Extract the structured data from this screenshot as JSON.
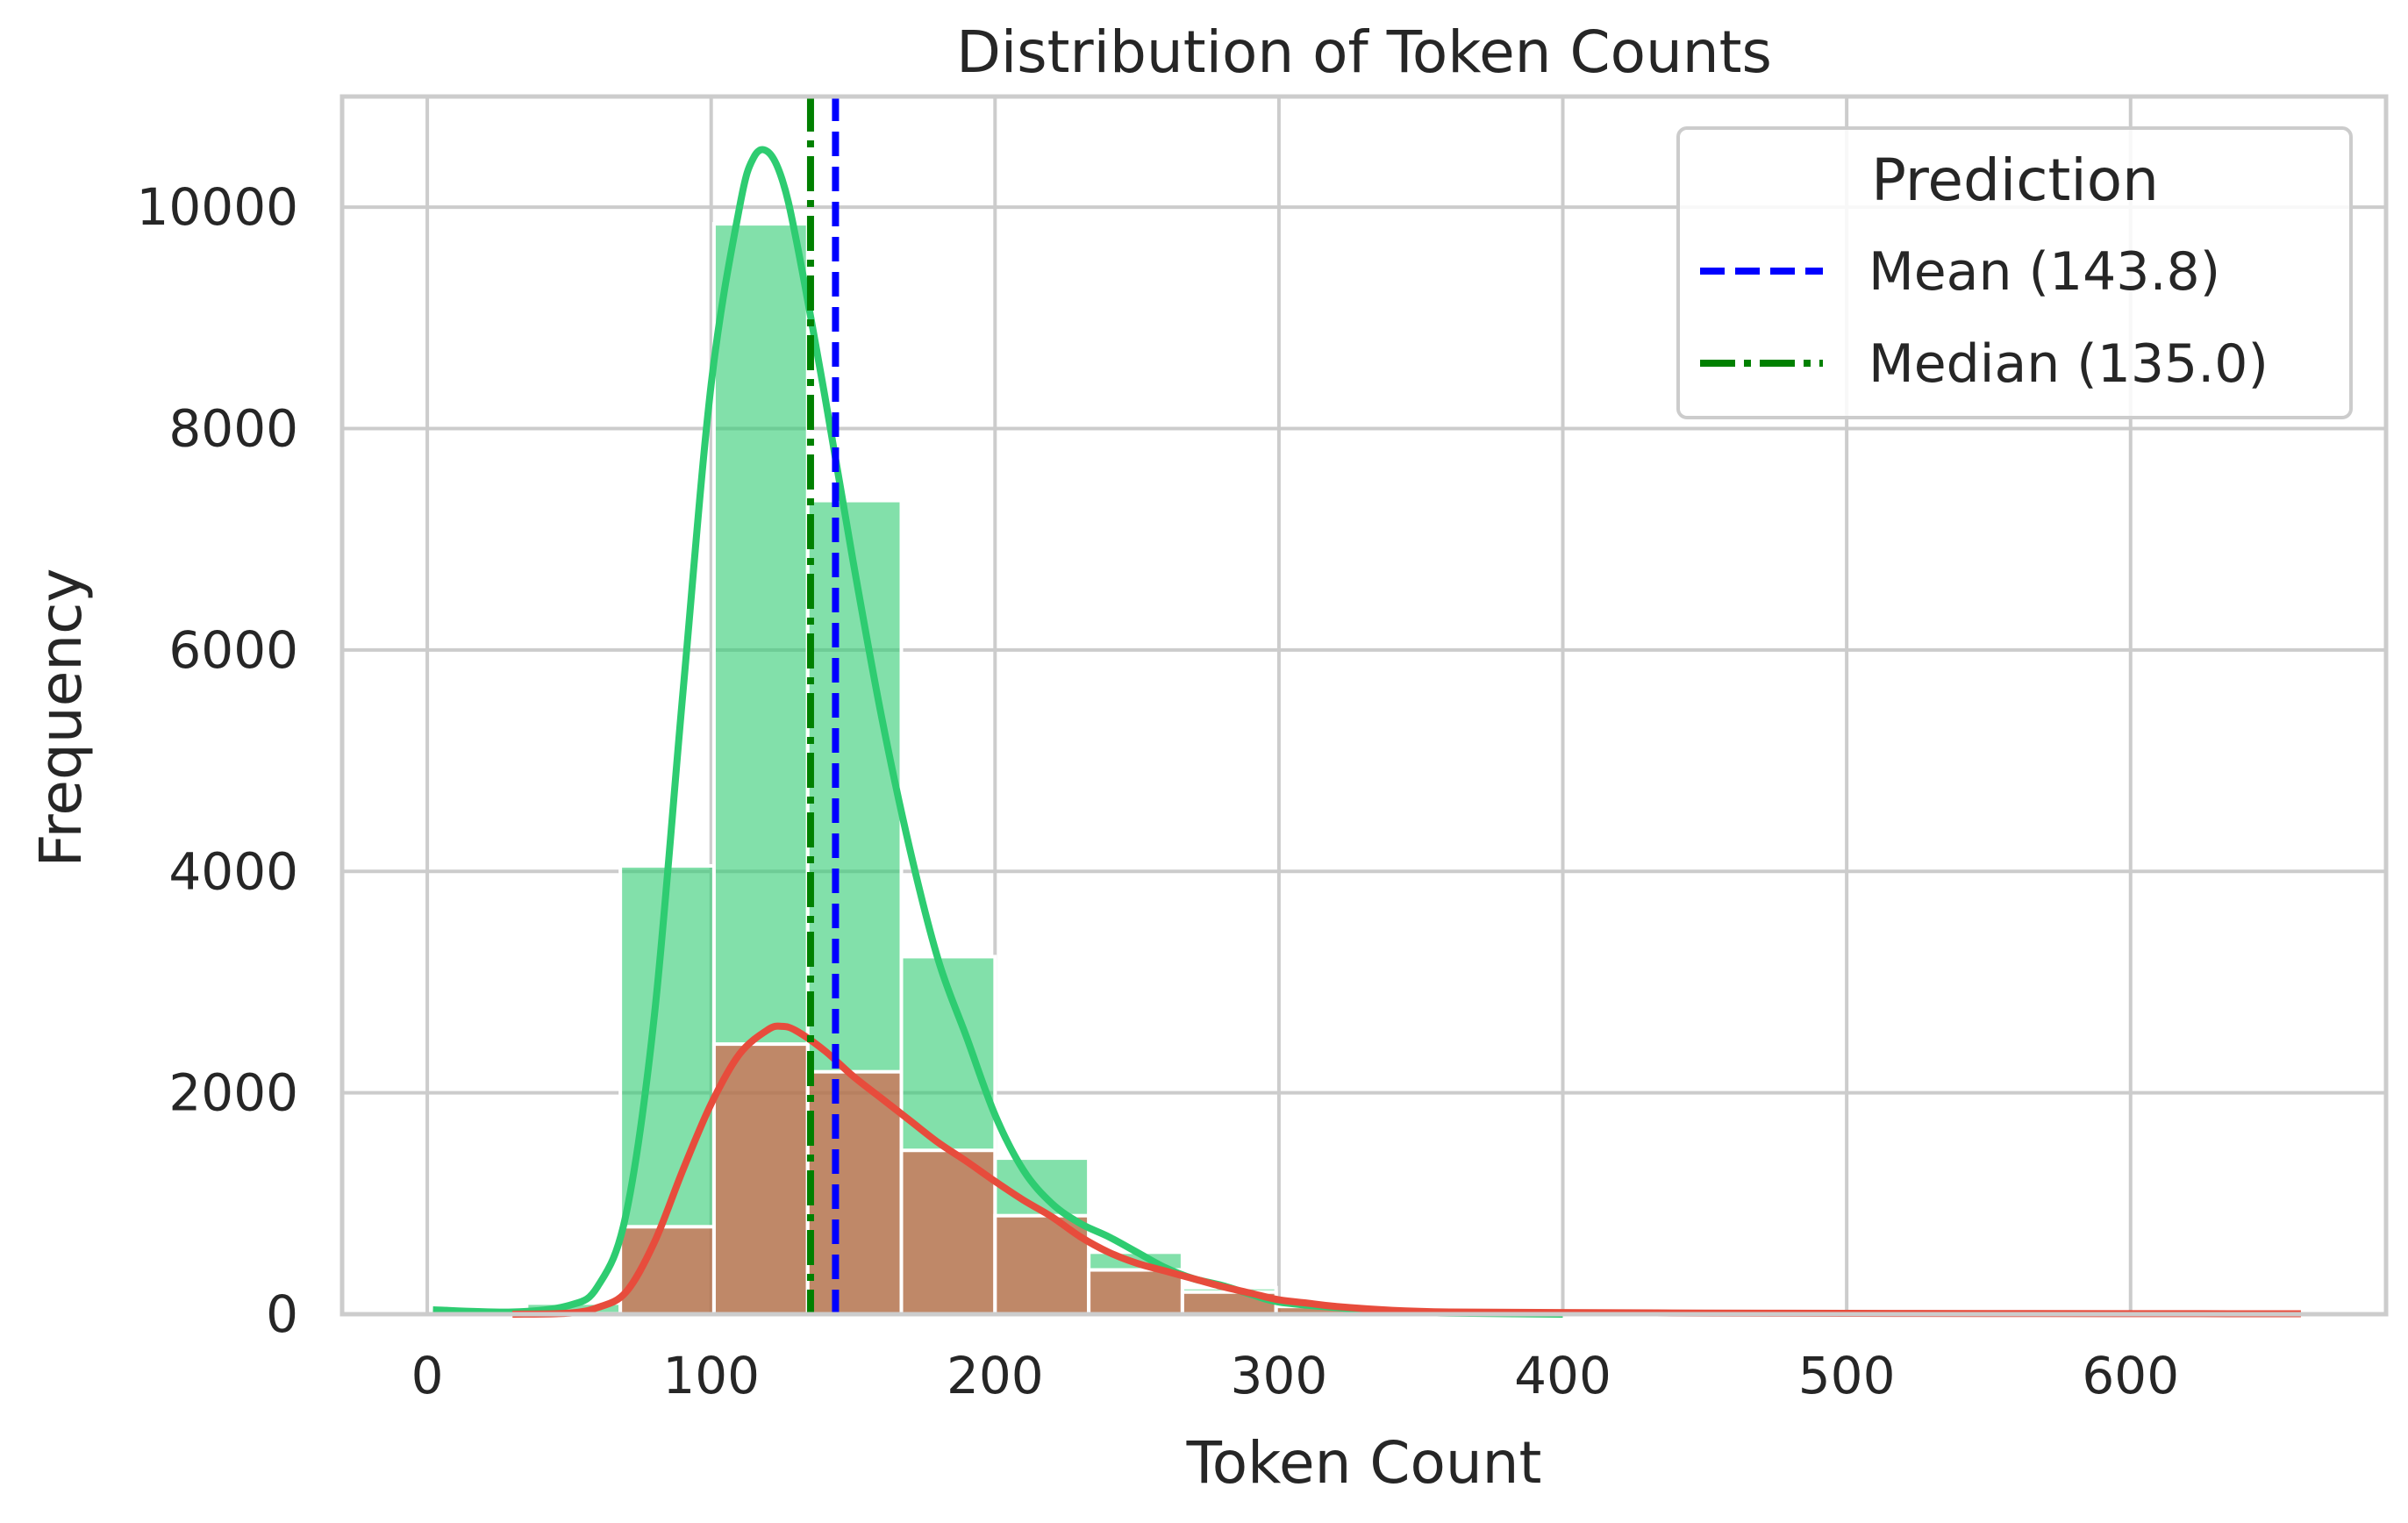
{
  "chart_data": {
    "type": "bar",
    "title": "Distribution of Token Counts",
    "xlabel": "Token Count",
    "ylabel": "Frequency",
    "xlim": [
      -30,
      690
    ],
    "ylim": [
      0,
      11000
    ],
    "xticks": [
      0,
      100,
      200,
      300,
      400,
      500,
      600
    ],
    "yticks": [
      0,
      2000,
      4000,
      6000,
      8000,
      10000
    ],
    "grid": true,
    "legend": {
      "title": "Prediction",
      "placement": "top-right",
      "entries": [
        {
          "label": "Mean (143.8)",
          "color": "#0000ff",
          "style": "dashed"
        },
        {
          "label": "Median (135.0)",
          "color": "#008000",
          "style": "dashdot"
        }
      ]
    },
    "bin_edges": [
      2,
      35,
      68,
      101,
      134,
      167,
      200,
      233,
      266,
      299,
      332,
      365,
      398,
      431,
      464,
      497,
      530,
      563,
      596,
      629,
      662
    ],
    "series": [
      {
        "color": "#2ecc71",
        "bar_values": [
          10,
          100,
          4050,
          9850,
          7350,
          3230,
          1410,
          560,
          240,
          75,
          30,
          15,
          8,
          6,
          4,
          3,
          2,
          2,
          1,
          1
        ],
        "kde_x": [
          2,
          30,
          50,
          60,
          70,
          80,
          90,
          100,
          110,
          115,
          120,
          125,
          130,
          140,
          150,
          160,
          170,
          180,
          190,
          200,
          210,
          220,
          230,
          240,
          250,
          260,
          270,
          280,
          290,
          300,
          320,
          340,
          360,
          400
        ],
        "kde_y": [
          40,
          20,
          80,
          250,
          900,
          2700,
          5600,
          8400,
          10000,
          10450,
          10500,
          10250,
          9700,
          8300,
          6800,
          5400,
          4200,
          3200,
          2500,
          1800,
          1300,
          1000,
          820,
          700,
          560,
          420,
          320,
          260,
          180,
          110,
          60,
          25,
          10,
          0
        ]
      },
      {
        "color": "#e74c3c",
        "bar_values": [
          0,
          5,
          790,
          2440,
          2190,
          1480,
          890,
          400,
          200,
          70,
          30,
          20,
          12,
          10,
          8,
          6,
          5,
          4,
          3,
          3
        ],
        "kde_x": [
          30,
          50,
          60,
          70,
          80,
          90,
          100,
          110,
          120,
          125,
          130,
          140,
          150,
          160,
          170,
          180,
          190,
          200,
          210,
          220,
          230,
          240,
          250,
          260,
          270,
          280,
          290,
          300,
          310,
          320,
          340,
          360,
          400,
          450,
          500,
          550,
          600,
          660
        ],
        "kde_y": [
          0,
          10,
          60,
          200,
          650,
          1300,
          1900,
          2350,
          2570,
          2600,
          2560,
          2380,
          2150,
          1950,
          1750,
          1550,
          1380,
          1200,
          1030,
          880,
          700,
          560,
          460,
          390,
          320,
          250,
          190,
          130,
          100,
          70,
          35,
          20,
          15,
          10,
          8,
          6,
          5,
          4
        ]
      }
    ],
    "mean": 143.8,
    "median": 135.0
  }
}
